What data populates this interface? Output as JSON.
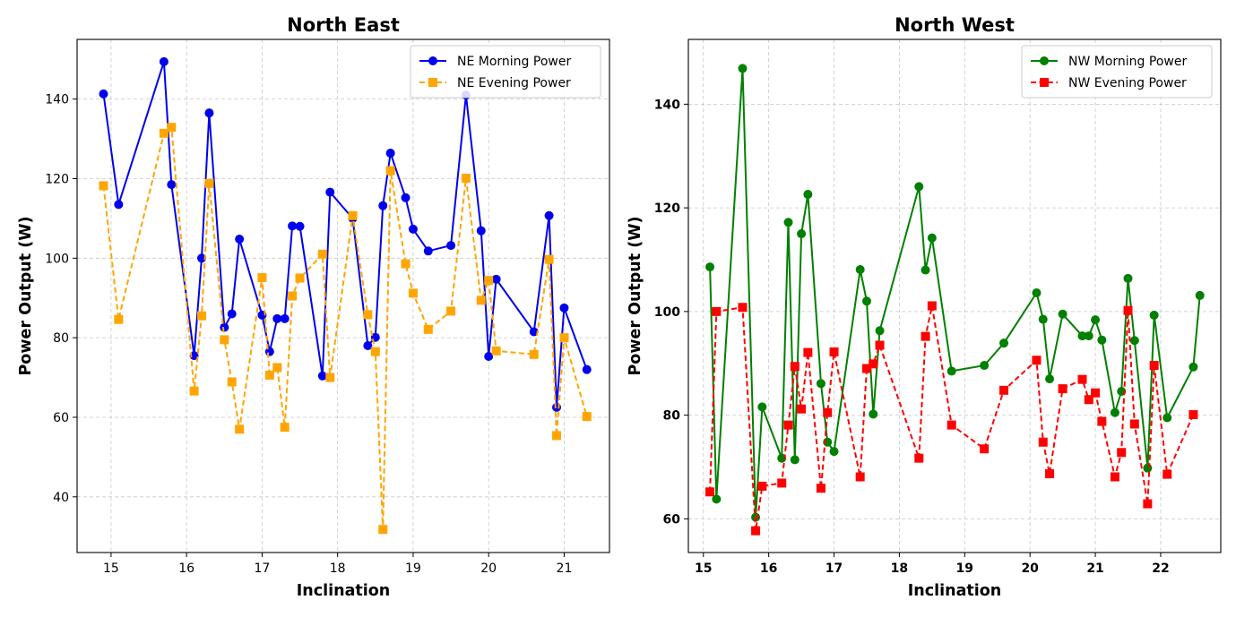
{
  "chart_data": [
    {
      "type": "line",
      "title": "North East",
      "xlabel": "Inclination",
      "ylabel": "Power Output (W)",
      "xlim": [
        14.55,
        21.6
      ],
      "ylim": [
        26,
        155
      ],
      "xticks": [
        15,
        16,
        17,
        18,
        19,
        20,
        21
      ],
      "yticks": [
        40,
        60,
        80,
        100,
        120,
        140
      ],
      "tick_bold": false,
      "grid": true,
      "legend_position": "top-right",
      "series": [
        {
          "name": "NE Morning Power",
          "color": "#0000ee",
          "line_style": "solid",
          "marker": "circle",
          "x": [
            14.9,
            15.1,
            15.7,
            15.8,
            16.1,
            16.2,
            16.3,
            16.5,
            16.6,
            16.7,
            17.0,
            17.1,
            17.2,
            17.3,
            17.4,
            17.5,
            17.8,
            17.9,
            18.2,
            18.4,
            18.5,
            18.6,
            18.7,
            18.9,
            19.0,
            19.2,
            19.5,
            19.7,
            19.9,
            20.0,
            20.1,
            20.6,
            20.8,
            20.9,
            21.0,
            21.3
          ],
          "y": [
            141.3,
            113.5,
            149.4,
            118.5,
            75.5,
            100.0,
            136.5,
            82.6,
            86.0,
            104.8,
            85.7,
            76.5,
            84.8,
            84.8,
            108.1,
            108.0,
            70.4,
            116.6,
            110.0,
            78.0,
            80.1,
            113.2,
            126.4,
            115.2,
            107.3,
            101.8,
            103.2,
            141.0,
            106.9,
            75.3,
            94.7,
            81.5,
            110.7,
            62.5,
            87.5,
            72.0
          ]
        },
        {
          "name": "NE Evening Power",
          "color": "#ffa500",
          "line_style": "dashed",
          "marker": "square",
          "x": [
            14.9,
            15.1,
            15.7,
            15.8,
            16.1,
            16.2,
            16.3,
            16.5,
            16.6,
            16.7,
            17.0,
            17.1,
            17.2,
            17.3,
            17.4,
            17.5,
            17.8,
            17.9,
            18.2,
            18.4,
            18.5,
            18.6,
            18.7,
            18.9,
            19.0,
            19.2,
            19.5,
            19.7,
            19.9,
            20.0,
            20.1,
            20.6,
            20.8,
            20.9,
            21.0,
            21.3
          ],
          "y": [
            118.2,
            84.6,
            131.4,
            132.9,
            66.6,
            85.5,
            118.8,
            79.5,
            68.9,
            57.0,
            95.1,
            70.6,
            72.5,
            57.5,
            90.5,
            95.0,
            101.0,
            70.0,
            110.7,
            85.8,
            76.5,
            31.8,
            122.0,
            98.6,
            91.2,
            82.1,
            86.7,
            120.1,
            89.4,
            94.4,
            76.7,
            75.8,
            99.7,
            55.4,
            80.0,
            60.2
          ]
        }
      ]
    },
    {
      "type": "line",
      "title": "North West",
      "xlabel": "Inclination",
      "ylabel": "Power Output (W)",
      "xlim": [
        14.77,
        22.92
      ],
      "ylim": [
        53.5,
        152.5
      ],
      "xticks": [
        15,
        16,
        17,
        18,
        19,
        20,
        21,
        22
      ],
      "yticks": [
        60,
        80,
        100,
        120,
        140
      ],
      "tick_bold": true,
      "grid": true,
      "legend_position": "top-right",
      "series": [
        {
          "name": "NW Morning Power",
          "color": "#008000",
          "line_style": "solid",
          "marker": "circle",
          "x": [
            15.1,
            15.2,
            15.6,
            15.8,
            15.9,
            16.2,
            16.3,
            16.4,
            16.5,
            16.6,
            16.8,
            16.9,
            17.0,
            17.4,
            17.5,
            17.6,
            17.7,
            18.3,
            18.4,
            18.5,
            18.8,
            19.3,
            19.6,
            20.1,
            20.2,
            20.3,
            20.5,
            20.8,
            20.9,
            21.0,
            21.1,
            21.3,
            21.4,
            21.5,
            21.6,
            21.8,
            21.9,
            22.1,
            22.5,
            22.6
          ],
          "y": [
            108.6,
            63.8,
            146.9,
            60.3,
            81.6,
            71.7,
            117.2,
            71.4,
            115.0,
            122.6,
            86.1,
            74.8,
            73.0,
            108.1,
            102.0,
            80.2,
            96.3,
            124.1,
            108.0,
            114.2,
            88.5,
            89.6,
            93.9,
            103.6,
            98.5,
            87.0,
            99.5,
            95.3,
            95.3,
            98.4,
            94.5,
            80.5,
            84.6,
            106.4,
            94.4,
            69.8,
            99.3,
            79.5,
            89.3,
            103.1
          ]
        },
        {
          "name": "NW Evening Power",
          "color": "#ff0000",
          "line_style": "dashed",
          "marker": "square",
          "x": [
            15.1,
            15.2,
            15.6,
            15.8,
            15.9,
            16.2,
            16.3,
            16.4,
            16.5,
            16.6,
            16.8,
            16.9,
            17.0,
            17.4,
            17.5,
            17.6,
            17.7,
            18.3,
            18.4,
            18.5,
            18.8,
            19.3,
            19.6,
            20.1,
            20.2,
            20.3,
            20.5,
            20.8,
            20.9,
            21.0,
            21.1,
            21.3,
            21.4,
            21.5,
            21.6,
            21.8,
            21.9,
            22.1,
            22.5
          ],
          "y": [
            65.2,
            100.0,
            100.8,
            57.7,
            66.3,
            66.9,
            78.1,
            89.4,
            81.2,
            92.1,
            65.9,
            80.5,
            92.2,
            68.1,
            89.0,
            89.9,
            93.5,
            71.7,
            95.2,
            101.1,
            78.1,
            73.5,
            84.8,
            90.6,
            74.8,
            68.7,
            85.1,
            86.9,
            83.0,
            84.3,
            78.8,
            68.1,
            72.8,
            100.2,
            78.3,
            62.9,
            89.6,
            68.6,
            80.1
          ]
        }
      ]
    }
  ]
}
